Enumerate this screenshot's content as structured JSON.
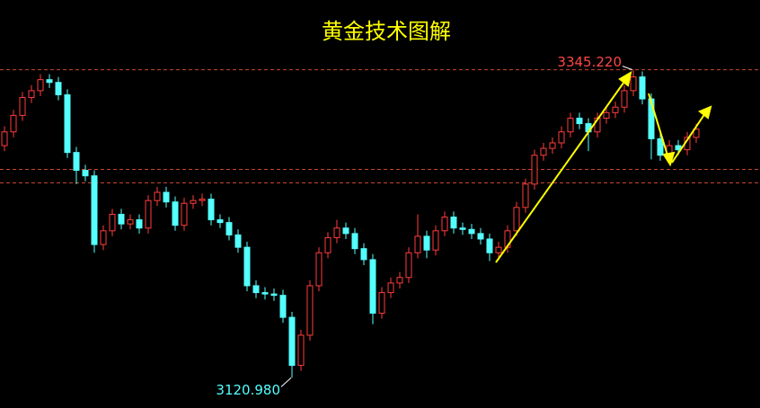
{
  "chart_data": {
    "type": "candlestick",
    "title": "黄金技术图解",
    "ylim": [
      3099,
      3396
    ],
    "up_color": "#ff3c3c",
    "down_color": "#54ffff",
    "reference_lines": [
      3345.22,
      3272.7,
      3262.9
    ],
    "reference_color": "#c8462d",
    "open": [
      3290,
      3300,
      3312,
      3325,
      3330,
      3338,
      3336,
      3327,
      3285,
      3272,
      3268,
      3218,
      3228,
      3240,
      3233,
      3236,
      3230,
      3250,
      3256,
      3249,
      3232,
      3248,
      3250,
      3251,
      3236,
      3234,
      3225,
      3216,
      3188,
      3183,
      3182,
      3181,
      3165,
      3130,
      3152,
      3188,
      3212,
      3223,
      3230,
      3226,
      3215,
      3207,
      3168,
      3183,
      3190,
      3194,
      3212,
      3224,
      3214,
      3228,
      3238,
      3230,
      3229,
      3226,
      3222,
      3212,
      3216,
      3228,
      3245,
      3262,
      3283,
      3288,
      3292,
      3300,
      3310,
      3306,
      3300,
      3310,
      3314,
      3318,
      3330,
      3340,
      3324,
      3295,
      3283,
      3290,
      3287,
      3296
    ],
    "high": [
      3304,
      3316,
      3329,
      3334,
      3342,
      3342,
      3340,
      3331,
      3289,
      3276,
      3272,
      3232,
      3244,
      3244,
      3240,
      3240,
      3254,
      3260,
      3260,
      3253,
      3252,
      3254,
      3255,
      3255,
      3240,
      3238,
      3229,
      3220,
      3192,
      3187,
      3186,
      3185,
      3169,
      3156,
      3192,
      3216,
      3227,
      3236,
      3234,
      3230,
      3219,
      3211,
      3187,
      3194,
      3198,
      3216,
      3240,
      3228,
      3232,
      3242,
      3242,
      3234,
      3233,
      3230,
      3226,
      3220,
      3232,
      3249,
      3266,
      3287,
      3292,
      3296,
      3304,
      3314,
      3314,
      3310,
      3314,
      3318,
      3322,
      3334,
      3345.22,
      3344,
      3328,
      3299,
      3294,
      3294,
      3300,
      3306
    ],
    "low": [
      3286,
      3296,
      3308,
      3321,
      3326,
      3332,
      3323,
      3281,
      3262,
      3264,
      3212,
      3214,
      3224,
      3229,
      3229,
      3226,
      3226,
      3246,
      3245,
      3228,
      3228,
      3244,
      3246,
      3232,
      3230,
      3221,
      3212,
      3184,
      3179,
      3178,
      3177,
      3161,
      3120.98,
      3126,
      3148,
      3184,
      3208,
      3219,
      3222,
      3211,
      3203,
      3160,
      3164,
      3179,
      3186,
      3190,
      3208,
      3208,
      3210,
      3224,
      3226,
      3225,
      3222,
      3218,
      3206,
      3208,
      3212,
      3224,
      3241,
      3258,
      3279,
      3284,
      3288,
      3296,
      3302,
      3286,
      3296,
      3306,
      3310,
      3314,
      3326,
      3320,
      3280,
      3279,
      3279,
      3283,
      3283,
      3292
    ],
    "close": [
      3300,
      3312,
      3325,
      3330,
      3338,
      3336,
      3327,
      3285,
      3272,
      3268,
      3218,
      3228,
      3240,
      3233,
      3236,
      3230,
      3250,
      3256,
      3249,
      3232,
      3248,
      3250,
      3251,
      3236,
      3234,
      3225,
      3216,
      3188,
      3183,
      3182,
      3181,
      3165,
      3130,
      3152,
      3188,
      3212,
      3223,
      3230,
      3226,
      3215,
      3207,
      3168,
      3183,
      3190,
      3194,
      3212,
      3224,
      3214,
      3228,
      3238,
      3230,
      3229,
      3226,
      3222,
      3212,
      3216,
      3228,
      3245,
      3262,
      3283,
      3288,
      3292,
      3300,
      3310,
      3306,
      3300,
      3310,
      3314,
      3318,
      3330,
      3340,
      3324,
      3295,
      3283,
      3290,
      3287,
      3296,
      3302
    ],
    "annotations": [
      {
        "value": 3345.22,
        "label": "3345.220",
        "color": "#ff4646"
      },
      {
        "value": 3120.98,
        "label": "3120.980",
        "color": "#54ffff"
      }
    ]
  }
}
